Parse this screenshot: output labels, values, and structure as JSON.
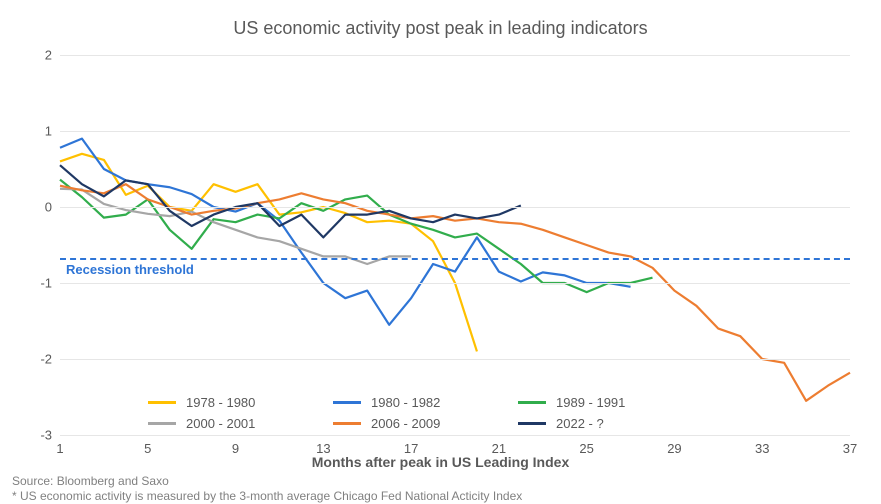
{
  "chart": {
    "type": "line",
    "title": "US economic activity post peak in leading indicators",
    "title_fontsize": 18,
    "xlabel": "Months after peak in US Leading Index",
    "label_fontsize": 14,
    "background_color": "#ffffff",
    "grid_color": "#e6e6e6",
    "axis_text_color": "#595959",
    "line_width": 2.2,
    "ylim": [
      -3,
      2
    ],
    "ytick_step": 1,
    "yticks": [
      -3,
      -2,
      -1,
      0,
      1,
      2
    ],
    "xlim": [
      1,
      37
    ],
    "xtick_step": 4,
    "xticks": [
      1,
      5,
      9,
      13,
      17,
      21,
      25,
      29,
      33,
      37
    ],
    "threshold": {
      "value": -0.67,
      "label": "Recession threshold",
      "color": "#2e75d6",
      "dash": "5,5"
    },
    "series": [
      {
        "name": "1978 - 1980",
        "color": "#ffc000",
        "x": [
          1,
          2,
          3,
          4,
          5,
          6,
          7,
          8,
          9,
          10,
          11,
          12,
          13,
          14,
          15,
          16,
          17,
          18,
          19,
          20
        ],
        "y": [
          0.6,
          0.7,
          0.62,
          0.16,
          0.28,
          0.0,
          -0.05,
          0.3,
          0.2,
          0.3,
          -0.1,
          -0.07,
          0.0,
          -0.08,
          -0.2,
          -0.18,
          -0.22,
          -0.45,
          -1.0,
          -1.9
        ]
      },
      {
        "name": "1980 - 1982",
        "color": "#2e75d6",
        "x": [
          1,
          2,
          3,
          4,
          5,
          6,
          7,
          8,
          9,
          10,
          11,
          12,
          13,
          14,
          15,
          16,
          17,
          18,
          19,
          20,
          21,
          22,
          23,
          24,
          25,
          26,
          27
        ],
        "y": [
          0.78,
          0.9,
          0.5,
          0.35,
          0.3,
          0.26,
          0.17,
          0.0,
          -0.06,
          0.05,
          -0.18,
          -0.6,
          -1.0,
          -1.2,
          -1.1,
          -1.55,
          -1.2,
          -0.75,
          -0.85,
          -0.4,
          -0.85,
          -0.98,
          -0.86,
          -0.9,
          -1.0,
          -1.0,
          -1.05
        ]
      },
      {
        "name": "1989 - 1991",
        "color": "#31ad4c",
        "x": [
          1,
          2,
          3,
          4,
          5,
          6,
          7,
          8,
          9,
          10,
          11,
          12,
          13,
          14,
          15,
          16,
          17,
          18,
          19,
          20,
          21,
          22,
          23,
          24,
          25,
          26,
          27,
          28
        ],
        "y": [
          0.36,
          0.13,
          -0.14,
          -0.1,
          0.1,
          -0.3,
          -0.55,
          -0.16,
          -0.2,
          -0.1,
          -0.15,
          0.05,
          -0.05,
          0.1,
          0.15,
          -0.1,
          -0.22,
          -0.3,
          -0.4,
          -0.35,
          -0.55,
          -0.75,
          -1.0,
          -1.0,
          -1.12,
          -1.0,
          -1.0,
          -0.93
        ]
      },
      {
        "name": "2000 - 2001",
        "color": "#a6a6a6",
        "x": [
          1,
          2,
          3,
          4,
          5,
          6,
          7,
          8,
          9,
          10,
          11,
          12,
          13,
          14,
          15,
          16,
          17
        ],
        "y": [
          0.24,
          0.23,
          0.04,
          -0.04,
          -0.09,
          -0.12,
          -0.06,
          -0.2,
          -0.3,
          -0.4,
          -0.45,
          -0.55,
          -0.65,
          -0.65,
          -0.75,
          -0.65,
          -0.65
        ]
      },
      {
        "name": "2006 - 2009",
        "color": "#ed7d31",
        "x": [
          1,
          2,
          3,
          4,
          5,
          6,
          7,
          8,
          9,
          10,
          11,
          12,
          13,
          14,
          15,
          16,
          17,
          18,
          19,
          20,
          21,
          22,
          23,
          24,
          25,
          26,
          27,
          28,
          29,
          30,
          31,
          32,
          33,
          34,
          35,
          36,
          37
        ],
        "y": [
          0.28,
          0.22,
          0.18,
          0.3,
          0.1,
          0.0,
          -0.1,
          -0.05,
          -0.02,
          0.05,
          0.1,
          0.18,
          0.1,
          0.05,
          -0.05,
          -0.1,
          -0.15,
          -0.12,
          -0.18,
          -0.15,
          -0.2,
          -0.22,
          -0.3,
          -0.4,
          -0.5,
          -0.6,
          -0.65,
          -0.8,
          -1.1,
          -1.3,
          -1.6,
          -1.7,
          -2.0,
          -2.05,
          -2.55,
          -2.35,
          -2.18
        ]
      },
      {
        "name": "2022 - ?",
        "color": "#1f3864",
        "x": [
          1,
          2,
          3,
          4,
          5,
          6,
          7,
          8,
          9,
          10,
          11,
          12,
          13,
          14,
          15,
          16,
          17,
          18,
          19,
          20,
          21,
          22
        ],
        "y": [
          0.55,
          0.3,
          0.14,
          0.35,
          0.3,
          -0.05,
          -0.25,
          -0.1,
          0.0,
          0.05,
          -0.25,
          -0.1,
          -0.4,
          -0.1,
          -0.1,
          -0.05,
          -0.15,
          -0.2,
          -0.1,
          -0.15,
          -0.1,
          0.02
        ]
      }
    ],
    "legend": {
      "position": "bottom-left-inside",
      "fontsize": 13
    },
    "source_line1": "Source: Bloomberg and Saxo",
    "source_line2": "* US economic activity is measured by the 3-month average Chicago Fed National Acticity Index",
    "source_fontsize": 12
  }
}
